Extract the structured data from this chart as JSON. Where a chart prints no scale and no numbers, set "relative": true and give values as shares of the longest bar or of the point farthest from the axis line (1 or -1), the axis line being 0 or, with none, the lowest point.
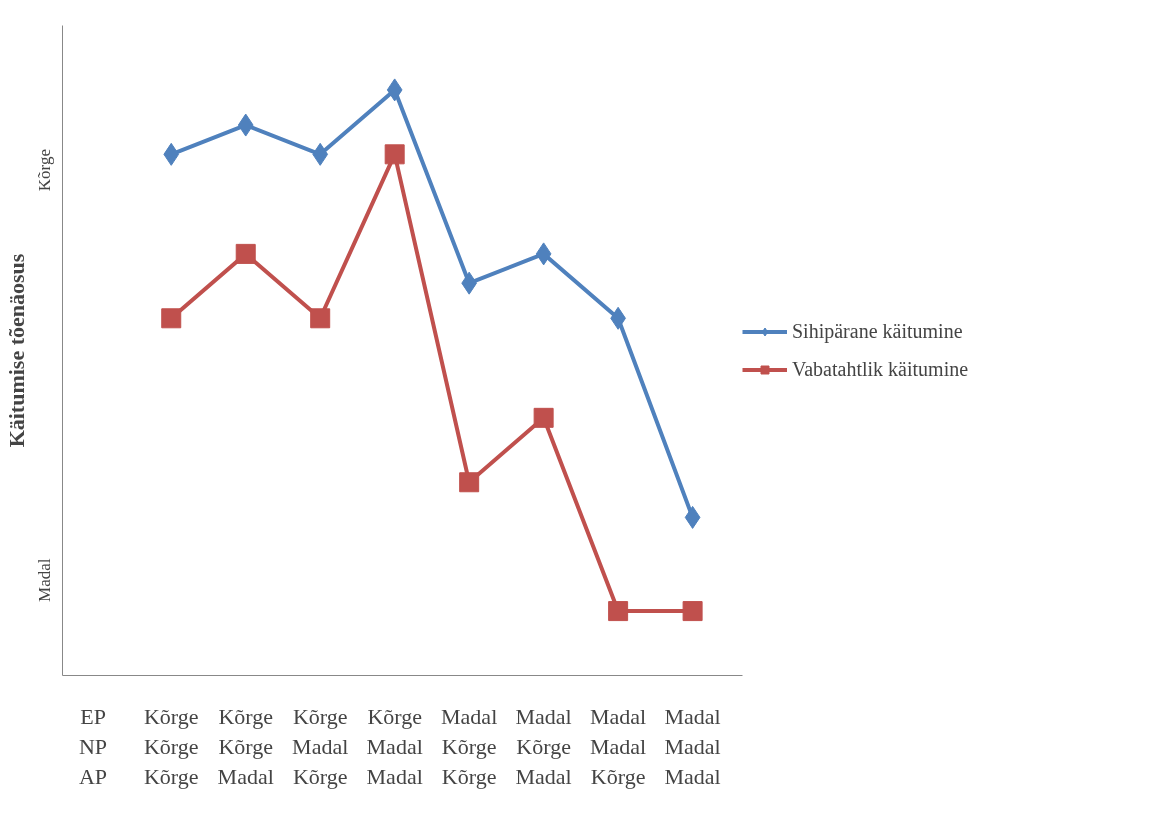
{
  "chart_data": {
    "type": "line",
    "relative": true,
    "ylabel": "Käitumise tõenäosus",
    "categories": [
      "Kõrge\nKõrge\nKõrge",
      "Kõrge\nKõrge\nMadal",
      "Kõrge\nMadal\nKõrge",
      "Kõrge\nMadal\nMadal",
      "Madal\nKõrge\nKõrge",
      "Madal\nKõrge\nMadal",
      "Madal\nMadal\nKõrge",
      "Madal\nMadal\nMadal"
    ],
    "annotations": [
      "Kõrge",
      "Madal",
      "EP",
      "NP",
      "AP"
    ],
    "series": [
      {
        "name": "Sihipärane käitumine",
        "color": "#4f81bd",
        "marker": "diamond",
        "values": [
          0.89,
          0.94,
          0.89,
          1,
          0.67,
          0.72,
          0.61,
          0.27
        ]
      },
      {
        "name": "Vabatahtlik käitumine",
        "color": "#c0504d",
        "marker": "square",
        "values": [
          0.61,
          0.72,
          0.61,
          0.89,
          0.33,
          0.44,
          0.11,
          0.11
        ]
      }
    ],
    "legend": "right",
    "grid": false
  }
}
